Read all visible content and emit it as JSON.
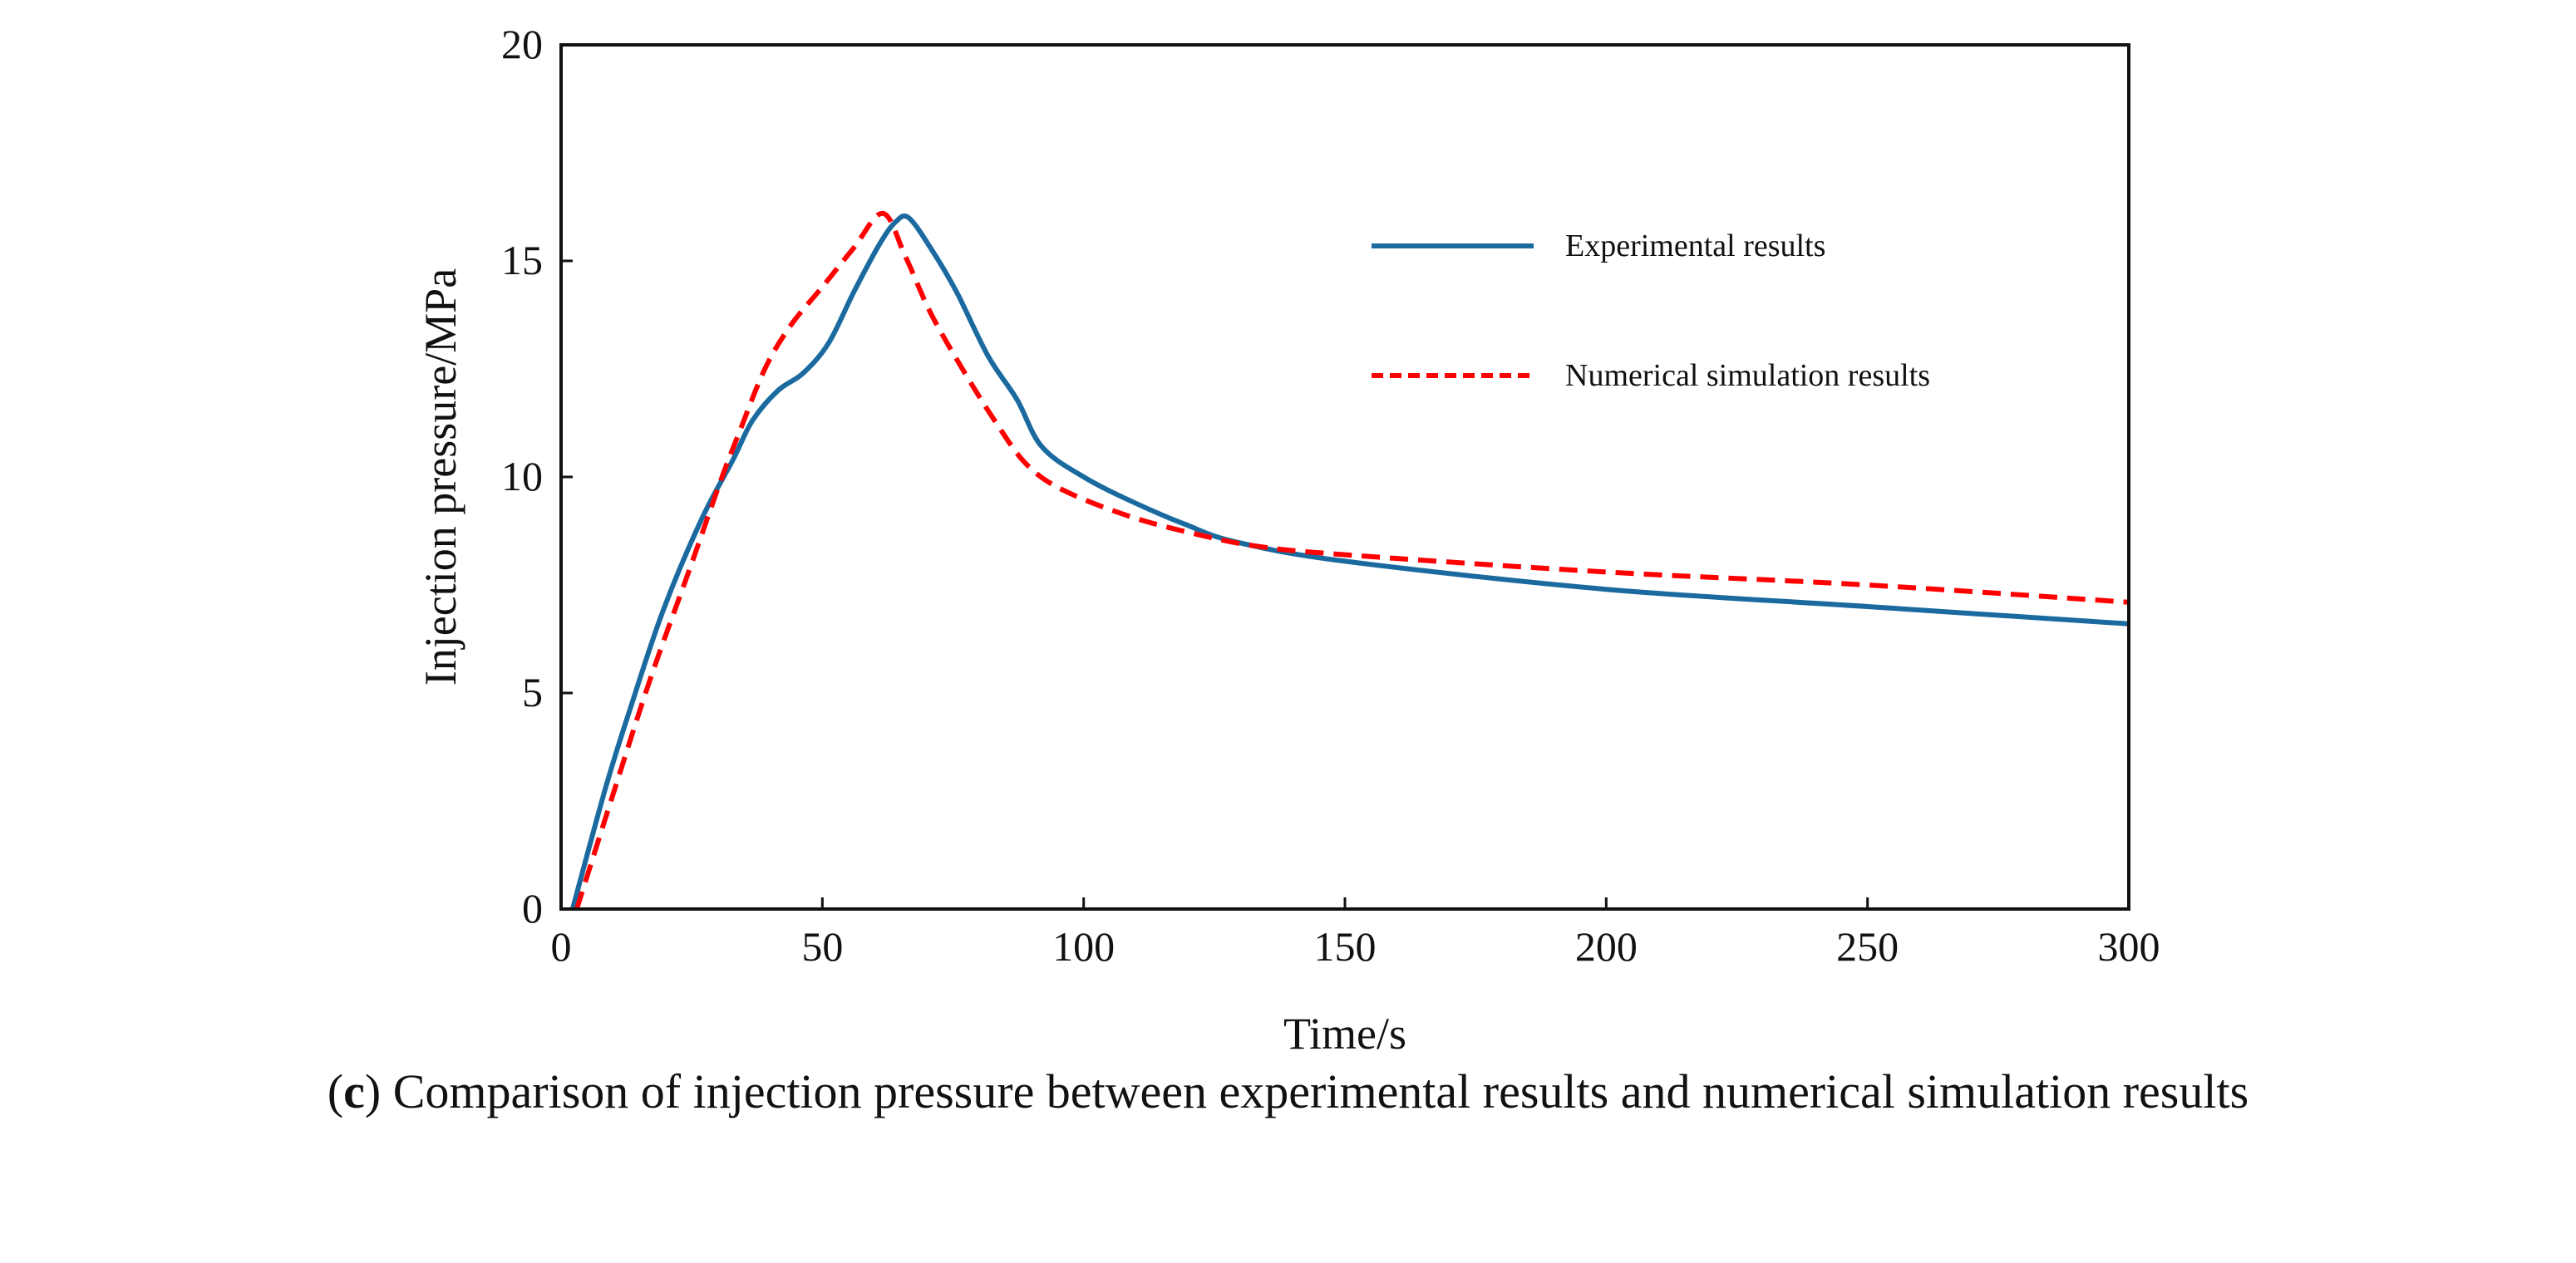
{
  "chart_data": {
    "type": "line",
    "title": "",
    "xlabel": "Time/s",
    "ylabel": "Injection pressure/MPa",
    "xlim": [
      0,
      300
    ],
    "ylim": [
      0,
      20
    ],
    "xticks": [
      0,
      50,
      100,
      150,
      200,
      250,
      300
    ],
    "yticks": [
      0,
      5,
      10,
      15,
      20
    ],
    "grid": false,
    "legend_position": "top-right",
    "series": [
      {
        "name": "Experimental results",
        "color": "#1a6aa0",
        "style": "solid",
        "x": [
          2.2,
          8.5,
          13.4,
          19.5,
          26.8,
          32.9,
          36.6,
          41.5,
          46.3,
          51.2,
          56.1,
          61,
          64,
          66.5,
          70.7,
          75.6,
          81.7,
          87.2,
          92,
          100,
          109.8,
          119.5,
          129,
          150,
          200,
          250,
          300
        ],
        "y": [
          0,
          2.8,
          4.7,
          6.9,
          9.0,
          10.4,
          11.3,
          12.0,
          12.4,
          13.1,
          14.3,
          15.4,
          15.9,
          16.0,
          15.3,
          14.3,
          12.8,
          11.8,
          10.7,
          10.0,
          9.4,
          8.9,
          8.5,
          8.05,
          7.4,
          7.0,
          6.6
        ]
      },
      {
        "name": "Numerical simulation results",
        "color": "#ff0000",
        "style": "dashed",
        "x": [
          3,
          9.8,
          17,
          24.4,
          30.5,
          34,
          39,
          43.9,
          50,
          56,
          61.6,
          65.9,
          70.7,
          76.8,
          83,
          89,
          96,
          108.5,
          120.7,
          133,
          150,
          200,
          250,
          300
        ],
        "y": [
          0,
          2.6,
          5.3,
          7.8,
          9.9,
          11.0,
          12.5,
          13.5,
          14.4,
          15.3,
          16.1,
          15.1,
          13.8,
          12.5,
          11.3,
          10.3,
          9.7,
          9.1,
          8.7,
          8.4,
          8.2,
          7.8,
          7.5,
          7.1
        ]
      }
    ]
  },
  "caption": {
    "label": "(c)",
    "label_letter": "c",
    "text": "Comparison of injection pressure between experimental results and numerical simulation results"
  }
}
